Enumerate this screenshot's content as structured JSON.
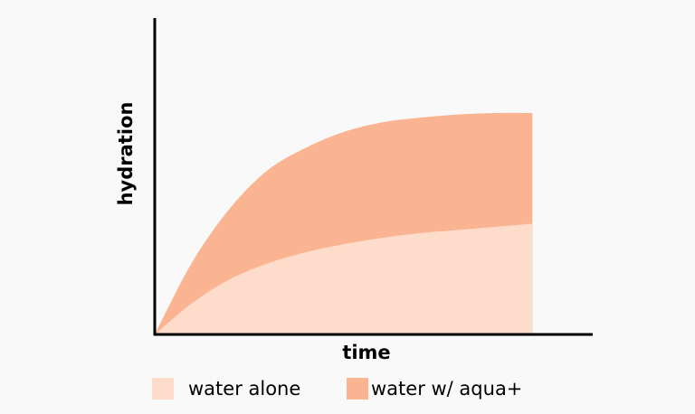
{
  "chart_data": {
    "type": "area",
    "x_label": "time",
    "y_label": "hydration",
    "x": [
      0,
      1,
      2,
      3,
      4,
      5,
      6,
      7,
      8,
      9,
      10
    ],
    "series": [
      {
        "name": "water alone",
        "color": "#fddccb",
        "values": [
          0,
          1.0,
          1.75,
          2.25,
          2.6,
          2.85,
          3.05,
          3.2,
          3.3,
          3.4,
          3.5
        ]
      },
      {
        "name": "water w/ aqua+",
        "color": "#fbb491",
        "values": [
          0,
          2.3,
          4.0,
          5.2,
          5.9,
          6.4,
          6.7,
          6.85,
          6.95,
          7.0,
          7.0
        ]
      }
    ],
    "xlim": [
      0,
      11.6
    ],
    "ylim": [
      0,
      10
    ]
  }
}
